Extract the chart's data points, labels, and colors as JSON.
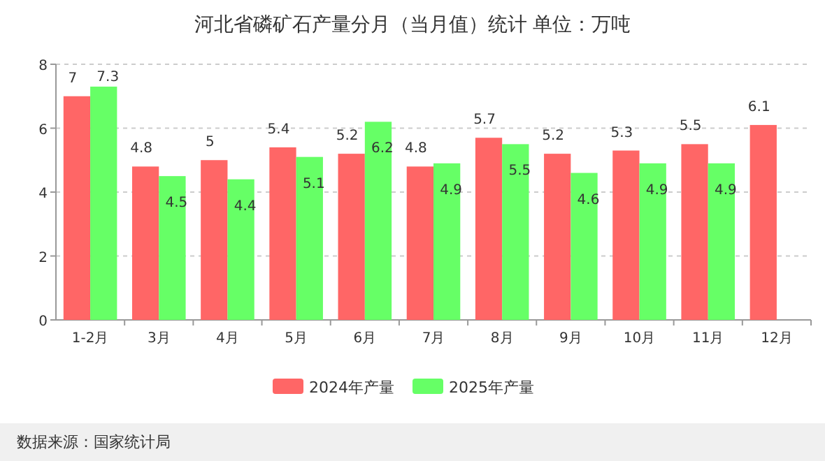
{
  "chart_data": {
    "type": "bar",
    "title": "河北省磷矿石产量分月（当月值）统计  单位：万吨",
    "categories": [
      "1-2月",
      "3月",
      "4月",
      "5月",
      "6月",
      "7月",
      "8月",
      "9月",
      "10月",
      "11月",
      "12月"
    ],
    "series": [
      {
        "name": "2024年产量",
        "color": "#ff6666",
        "values": [
          7,
          4.8,
          5,
          5.4,
          5.2,
          4.8,
          5.7,
          5.2,
          5.3,
          5.5,
          6.1
        ]
      },
      {
        "name": "2025年产量",
        "color": "#66ff66",
        "values": [
          7.3,
          4.5,
          4.4,
          5.1,
          6.2,
          4.9,
          5.5,
          4.6,
          4.9,
          4.9,
          null
        ]
      }
    ],
    "ylim": [
      0,
      8
    ],
    "yticks": [
      0,
      2,
      4,
      6,
      8
    ],
    "grid": "y",
    "legend": "bottom",
    "data_labels": true,
    "annotations": [
      "数据来源：国家统计局"
    ]
  }
}
